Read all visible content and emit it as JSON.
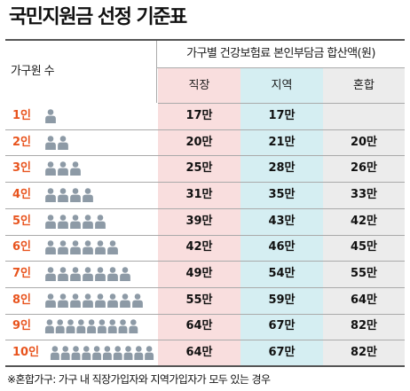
{
  "title": "국민지원금 선정 기준표",
  "table": {
    "row_header": "가구원 수",
    "group_header": "가구별 건강보험료 본인부담금 합산액(원)",
    "columns": [
      "직장",
      "지역",
      "혼합"
    ],
    "column_colors": [
      "#f9dede",
      "#d5eef2",
      "#ececec"
    ],
    "label_color": "#e8541e",
    "icon_color": "#8d9aa6",
    "icon": "person-icon",
    "rows": [
      {
        "label": "1인",
        "people": 1,
        "cells": [
          "17만",
          "17만",
          ""
        ]
      },
      {
        "label": "2인",
        "people": 2,
        "cells": [
          "20만",
          "21만",
          "20만"
        ]
      },
      {
        "label": "3인",
        "people": 3,
        "cells": [
          "25만",
          "28만",
          "26만"
        ]
      },
      {
        "label": "4인",
        "people": 4,
        "cells": [
          "31만",
          "35만",
          "33만"
        ]
      },
      {
        "label": "5인",
        "people": 5,
        "cells": [
          "39만",
          "43만",
          "42만"
        ]
      },
      {
        "label": "6인",
        "people": 6,
        "cells": [
          "42만",
          "46만",
          "45만"
        ]
      },
      {
        "label": "7인",
        "people": 7,
        "cells": [
          "49만",
          "54만",
          "55만"
        ]
      },
      {
        "label": "8인",
        "people": 8,
        "cells": [
          "55만",
          "59만",
          "64만"
        ]
      },
      {
        "label": "9인",
        "people": 9,
        "cells": [
          "64만",
          "67만",
          "82만"
        ]
      },
      {
        "label": "10인",
        "people": 10,
        "cells": [
          "64만",
          "67만",
          "82만"
        ]
      }
    ]
  },
  "footnote": "※혼합가구: 가구 내 직장가입자와 지역가입자가 모두 있는 경우",
  "chart_data": {
    "type": "table",
    "title": "국민지원금 선정 기준표",
    "row_header": "가구원 수",
    "group_header": "가구별 건강보험료 본인부담금 합산액(원)",
    "columns": [
      "직장",
      "지역",
      "혼합"
    ],
    "rows": [
      "1인",
      "2인",
      "3인",
      "4인",
      "5인",
      "6인",
      "7인",
      "8인",
      "9인",
      "10인"
    ],
    "values": [
      [
        "17만",
        "17만",
        ""
      ],
      [
        "20만",
        "21만",
        "20만"
      ],
      [
        "25만",
        "28만",
        "26만"
      ],
      [
        "31만",
        "35만",
        "33만"
      ],
      [
        "39만",
        "43만",
        "42만"
      ],
      [
        "42만",
        "46만",
        "45만"
      ],
      [
        "49만",
        "54만",
        "55만"
      ],
      [
        "55만",
        "59만",
        "64만"
      ],
      [
        "64만",
        "67만",
        "82만"
      ],
      [
        "64만",
        "67만",
        "82만"
      ]
    ]
  }
}
